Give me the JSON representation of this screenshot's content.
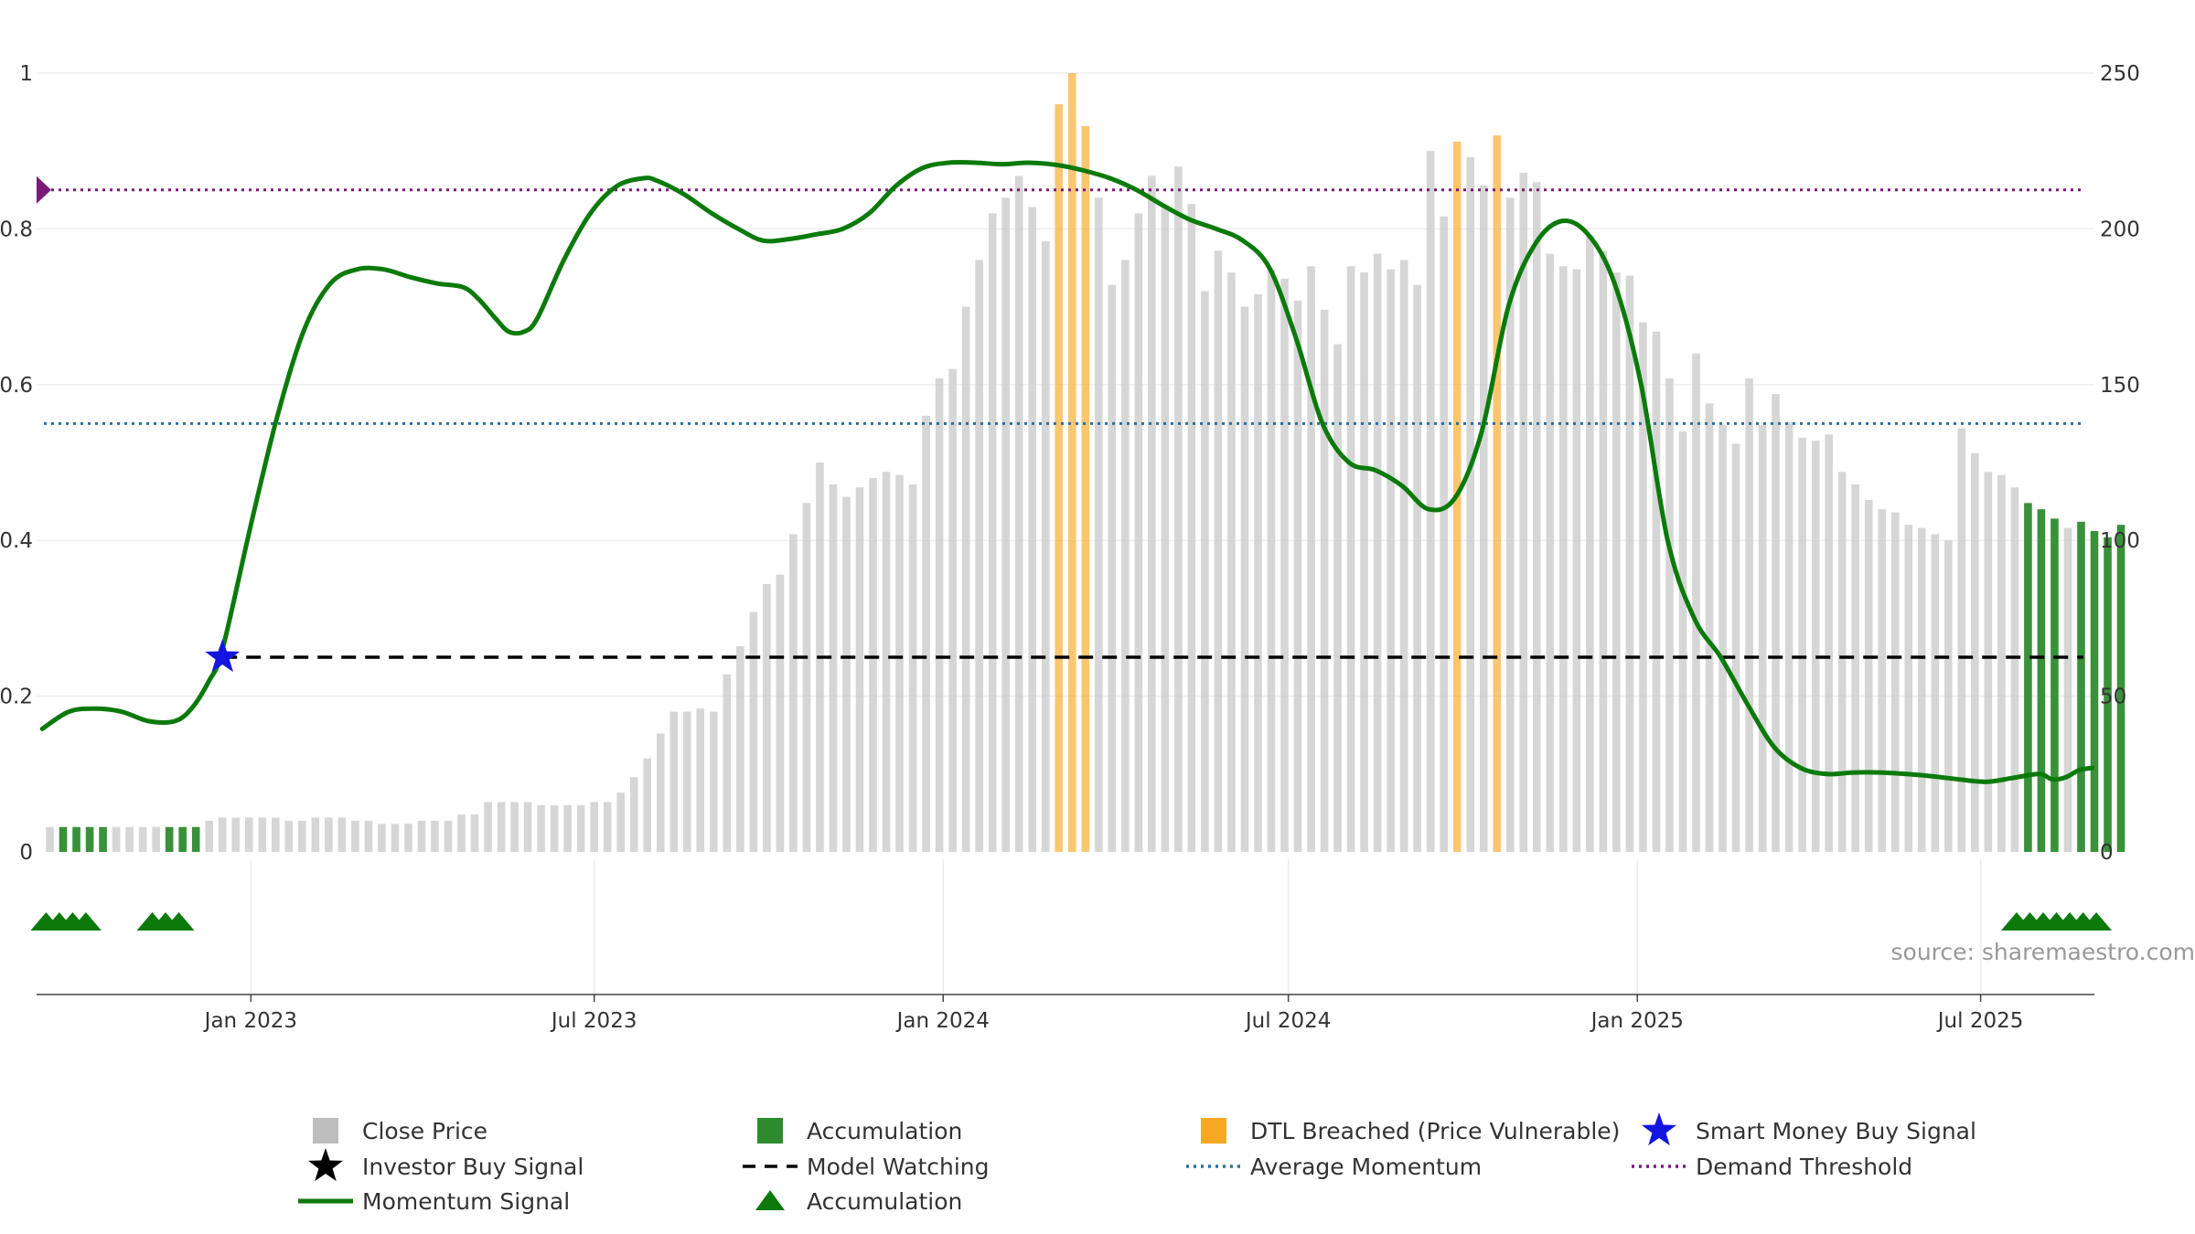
{
  "chart_data": {
    "type": "bar",
    "source": "source: sharemaestro.com",
    "left_axis": {
      "ylim": [
        0,
        1
      ],
      "ticks": [
        "0",
        "0.2",
        "0.4",
        "0.6",
        "0.8",
        "1"
      ]
    },
    "right_axis": {
      "ylim": [
        0,
        250
      ],
      "ticks": [
        "0",
        "50",
        "100",
        "150",
        "200",
        "250"
      ]
    },
    "x_axis": {
      "range": [
        "2022-09-10",
        "2025-08-30"
      ],
      "ticks": [
        {
          "date": "2023-01-01",
          "label": "Jan 2023"
        },
        {
          "date": "2023-07-01",
          "label": "Jul 2023"
        },
        {
          "date": "2024-01-01",
          "label": "Jan 2024"
        },
        {
          "date": "2024-07-01",
          "label": "Jul 2024"
        },
        {
          "date": "2025-01-01",
          "label": "Jan 2025"
        },
        {
          "date": "2025-07-01",
          "label": "Jul 2025"
        }
      ]
    },
    "grid": true,
    "bars": {
      "start_date": "2022-09-17",
      "interval_days": 7,
      "values": [
        8,
        8,
        8,
        8,
        8,
        8,
        8,
        8,
        8,
        8,
        8,
        8,
        10,
        11,
        11,
        11,
        11,
        11,
        10,
        10,
        11,
        11,
        11,
        10,
        10,
        9,
        9,
        9,
        10,
        10,
        10,
        12,
        12,
        16,
        16,
        16,
        16,
        15,
        15,
        15,
        15,
        16,
        16,
        19,
        24,
        30,
        38,
        45,
        45,
        46,
        45,
        57,
        66,
        77,
        86,
        89,
        102,
        112,
        125,
        118,
        114,
        117,
        120,
        122,
        121,
        118,
        140,
        152,
        155,
        175,
        190,
        205,
        210,
        217,
        207,
        196,
        240,
        250,
        233,
        210,
        182,
        190,
        205,
        217,
        207,
        220,
        208,
        180,
        193,
        186,
        175,
        179,
        187,
        184,
        177,
        188,
        174,
        163,
        188,
        186,
        192,
        187,
        190,
        182,
        225,
        204,
        228,
        223,
        214,
        230,
        210,
        218,
        215,
        192,
        188,
        187,
        198,
        193,
        186,
        185,
        170,
        167,
        152,
        135,
        160,
        144,
        137,
        131,
        152,
        137,
        147,
        138,
        133,
        132,
        134,
        122,
        118,
        113,
        110,
        109,
        105,
        104,
        102,
        100,
        136,
        128,
        122,
        121,
        117,
        112,
        110,
        107,
        104,
        106,
        103,
        101,
        105
      ],
      "categories": [
        "base",
        "base",
        "base",
        "base",
        "base",
        "base",
        "base",
        "base",
        "base",
        "base",
        "base",
        "base",
        "base",
        "base",
        "base",
        "base",
        "base",
        "base",
        "base",
        "base",
        "base",
        "base",
        "base",
        "base",
        "base",
        "base",
        "base",
        "base",
        "base",
        "base",
        "base",
        "base",
        "base",
        "base",
        "base",
        "base",
        "base",
        "base",
        "base",
        "base",
        "base",
        "base",
        "base",
        "base",
        "base",
        "base",
        "base",
        "base",
        "base",
        "base",
        "base",
        "base",
        "base",
        "base",
        "base",
        "base",
        "base",
        "base",
        "base",
        "base",
        "base",
        "base",
        "base",
        "base",
        "base",
        "base",
        "base",
        "base",
        "base",
        "base",
        "base",
        "base",
        "base",
        "base",
        "base",
        "base",
        "dtl",
        "dtl",
        "dtl",
        "base",
        "base",
        "base",
        "base",
        "base",
        "base",
        "base",
        "base",
        "base",
        "base",
        "base",
        "base",
        "base",
        "base",
        "base",
        "base",
        "base",
        "base",
        "base",
        "base",
        "base",
        "base",
        "base",
        "base",
        "base",
        "base",
        "base",
        "dtl",
        "base",
        "base",
        "dtl",
        "base",
        "base",
        "base",
        "base",
        "base",
        "base",
        "base",
        "base",
        "base",
        "base",
        "base",
        "base",
        "base",
        "base",
        "base",
        "base",
        "base",
        "base",
        "base",
        "base",
        "base",
        "base",
        "base",
        "base",
        "base",
        "base",
        "base",
        "base",
        "base",
        "base",
        "base",
        "base",
        "base",
        "base",
        "base",
        "base",
        "base",
        "base",
        "base",
        "acc",
        "acc",
        "acc",
        "base",
        "acc",
        "acc",
        "acc",
        "acc"
      ],
      "accumulation_early_indices": [
        1,
        2,
        3,
        4,
        9,
        10,
        11
      ]
    },
    "momentum": {
      "points": [
        [
          "2022-09-13",
          0.158
        ],
        [
          "2022-09-27",
          0.18
        ],
        [
          "2022-10-11",
          0.184
        ],
        [
          "2022-10-25",
          0.18
        ],
        [
          "2022-11-08",
          0.168
        ],
        [
          "2022-11-22",
          0.168
        ],
        [
          "2022-12-01",
          0.185
        ],
        [
          "2022-12-10",
          0.22
        ],
        [
          "2022-12-17",
          0.26
        ],
        [
          "2023-01-01",
          0.42
        ],
        [
          "2023-01-15",
          0.56
        ],
        [
          "2023-01-29",
          0.67
        ],
        [
          "2023-02-12",
          0.73
        ],
        [
          "2023-02-26",
          0.748
        ],
        [
          "2023-03-12",
          0.748
        ],
        [
          "2023-03-26",
          0.738
        ],
        [
          "2023-04-09",
          0.73
        ],
        [
          "2023-04-23",
          0.725
        ],
        [
          "2023-05-01",
          0.71
        ],
        [
          "2023-05-10",
          0.685
        ],
        [
          "2023-05-17",
          0.668
        ],
        [
          "2023-05-25",
          0.668
        ],
        [
          "2023-06-01",
          0.685
        ],
        [
          "2023-06-15",
          0.76
        ],
        [
          "2023-06-29",
          0.82
        ],
        [
          "2023-07-13",
          0.855
        ],
        [
          "2023-07-27",
          0.865
        ],
        [
          "2023-08-03",
          0.862
        ],
        [
          "2023-08-17",
          0.845
        ],
        [
          "2023-09-01",
          0.82
        ],
        [
          "2023-09-15",
          0.8
        ],
        [
          "2023-09-28",
          0.785
        ],
        [
          "2023-10-12",
          0.787
        ],
        [
          "2023-10-26",
          0.793
        ],
        [
          "2023-11-09",
          0.8
        ],
        [
          "2023-11-23",
          0.82
        ],
        [
          "2023-12-07",
          0.855
        ],
        [
          "2023-12-21",
          0.878
        ],
        [
          "2024-01-04",
          0.885
        ],
        [
          "2024-01-18",
          0.885
        ],
        [
          "2024-02-01",
          0.883
        ],
        [
          "2024-02-15",
          0.885
        ],
        [
          "2024-03-01",
          0.882
        ],
        [
          "2024-03-15",
          0.875
        ],
        [
          "2024-03-29",
          0.865
        ],
        [
          "2024-04-12",
          0.85
        ],
        [
          "2024-04-26",
          0.83
        ],
        [
          "2024-05-10",
          0.812
        ],
        [
          "2024-05-24",
          0.8
        ],
        [
          "2024-06-07",
          0.785
        ],
        [
          "2024-06-21",
          0.75
        ],
        [
          "2024-07-05",
          0.66
        ],
        [
          "2024-07-19",
          0.55
        ],
        [
          "2024-08-02",
          0.5
        ],
        [
          "2024-08-16",
          0.49
        ],
        [
          "2024-08-30",
          0.47
        ],
        [
          "2024-09-13",
          0.44
        ],
        [
          "2024-09-27",
          0.455
        ],
        [
          "2024-10-11",
          0.54
        ],
        [
          "2024-10-25",
          0.7
        ],
        [
          "2024-11-08",
          0.78
        ],
        [
          "2024-11-22",
          0.81
        ],
        [
          "2024-12-06",
          0.793
        ],
        [
          "2024-12-20",
          0.73
        ],
        [
          "2025-01-03",
          0.6
        ],
        [
          "2025-01-17",
          0.4
        ],
        [
          "2025-01-31",
          0.3
        ],
        [
          "2025-02-14",
          0.25
        ],
        [
          "2025-02-28",
          0.19
        ],
        [
          "2025-03-14",
          0.135
        ],
        [
          "2025-03-28",
          0.108
        ],
        [
          "2025-04-11",
          0.1
        ],
        [
          "2025-04-25",
          0.102
        ],
        [
          "2025-05-09",
          0.102
        ],
        [
          "2025-05-23",
          0.1
        ],
        [
          "2025-06-06",
          0.097
        ],
        [
          "2025-06-20",
          0.093
        ],
        [
          "2025-07-04",
          0.09
        ],
        [
          "2025-07-18",
          0.095
        ],
        [
          "2025-08-01",
          0.1
        ],
        [
          "2025-08-08",
          0.093
        ],
        [
          "2025-08-15",
          0.096
        ],
        [
          "2025-08-22",
          0.105
        ],
        [
          "2025-08-29",
          0.108
        ]
      ]
    },
    "thresholds": {
      "demand_threshold": 0.85,
      "average_momentum": 0.55
    },
    "model_watching": {
      "start_date": "2022-12-17",
      "value": 0.25
    },
    "smart_money_buy_signal": {
      "date": "2022-12-17",
      "value": 0.25
    },
    "accumulation_markers": [
      "2022-09-15",
      "2022-09-22",
      "2022-09-29",
      "2022-10-06",
      "2022-11-10",
      "2022-11-17",
      "2022-11-24",
      "2025-07-20",
      "2025-07-27",
      "2025-08-03",
      "2025-08-10",
      "2025-08-17",
      "2025-08-24",
      "2025-08-31"
    ],
    "legend": [
      {
        "key": "close_price",
        "label": "Close Price"
      },
      {
        "key": "accumulation_bar",
        "label": "Accumulation"
      },
      {
        "key": "dtl",
        "label": "DTL Breached (Price Vulnerable)"
      },
      {
        "key": "smart_money",
        "label": "Smart Money Buy Signal"
      },
      {
        "key": "investor_buy",
        "label": "Investor Buy Signal"
      },
      {
        "key": "model_watching",
        "label": "Model Watching"
      },
      {
        "key": "avg_momentum",
        "label": "Average Momentum"
      },
      {
        "key": "demand_threshold",
        "label": "Demand Threshold"
      },
      {
        "key": "momentum",
        "label": "Momentum Signal"
      },
      {
        "key": "accumulation_tri",
        "label": "Accumulation"
      }
    ],
    "colors": {
      "base_bar": "#c8c8c8",
      "accumulation": "#2e8b2e",
      "dtl": "#f7a823",
      "momentum": "#0b7a0b",
      "smart_money": "#1515e0",
      "average_momentum": "#2a6f9e",
      "demand_threshold": "#7a1a7a",
      "model_watching": "#000000"
    }
  }
}
